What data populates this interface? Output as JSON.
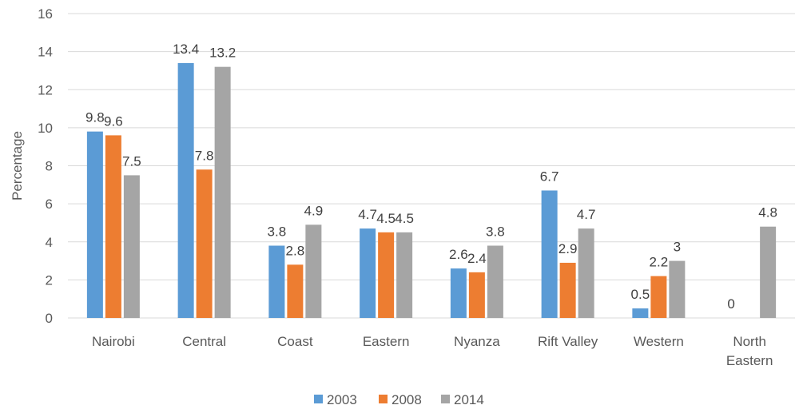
{
  "chart_data": {
    "type": "bar",
    "categories": [
      "Nairobi",
      "Central",
      "Coast",
      "Eastern",
      "Nyanza",
      "Rift Valley",
      "Western",
      "North Eastern"
    ],
    "category_lines": [
      [
        "Nairobi"
      ],
      [
        "Central"
      ],
      [
        "Coast"
      ],
      [
        "Eastern"
      ],
      [
        "Nyanza"
      ],
      [
        "Rift Valley"
      ],
      [
        "Western"
      ],
      [
        "North",
        "Eastern"
      ]
    ],
    "series": [
      {
        "name": "2003",
        "color": "#5B9BD5",
        "values": [
          9.8,
          13.4,
          3.8,
          4.7,
          2.6,
          6.7,
          0.5,
          0
        ]
      },
      {
        "name": "2008",
        "color": "#ED7D31",
        "values": [
          9.6,
          7.8,
          2.8,
          4.5,
          2.4,
          2.9,
          2.2,
          null
        ]
      },
      {
        "name": "2014",
        "color": "#A5A5A5",
        "values": [
          7.5,
          13.2,
          4.9,
          4.5,
          3.8,
          4.7,
          3,
          4.8
        ]
      }
    ],
    "data_labels": [
      [
        "9.8",
        "13.4",
        "3.8",
        "4.7",
        "2.6",
        "6.7",
        "0.5",
        "0"
      ],
      [
        "9.6",
        "7.8",
        "2.8",
        "4.5",
        "2.4",
        "2.9",
        "2.2",
        ""
      ],
      [
        "7.5",
        "13.2",
        "4.9",
        "4.5",
        "3.8",
        "4.7",
        "3",
        "4.8"
      ]
    ],
    "ylabel": "Percentage",
    "xlabel": "",
    "ylim": [
      0,
      16
    ],
    "yticks": [
      0,
      2,
      4,
      6,
      8,
      10,
      12,
      14,
      16
    ],
    "grid": true,
    "legend_position": "bottom",
    "gridline_color": "#D9D9D9"
  }
}
